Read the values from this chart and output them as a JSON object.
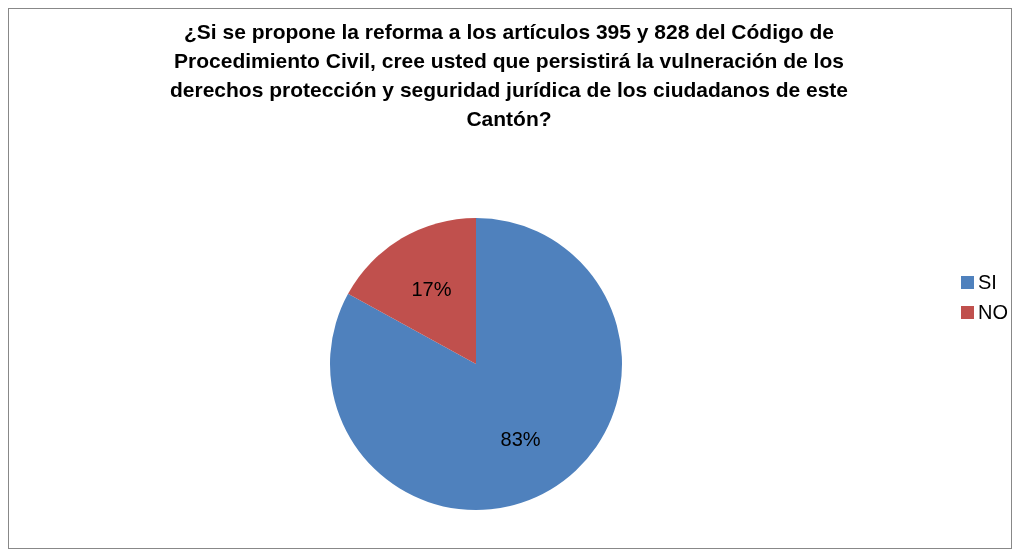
{
  "chart_data": {
    "type": "pie",
    "title": "¿Si se propone la reforma a los artículos 395 y 828 del Código de Procedimiento Civil, cree usted que persistirá la vulneración de los derechos protección y seguridad jurídica de los ciudadanos de este Cantón?",
    "categories": [
      "SI",
      "NO"
    ],
    "values": [
      83,
      17
    ],
    "colors": [
      "#4f81bd",
      "#c0504d"
    ],
    "value_labels": [
      "83%",
      "17%"
    ],
    "legend": "right"
  }
}
